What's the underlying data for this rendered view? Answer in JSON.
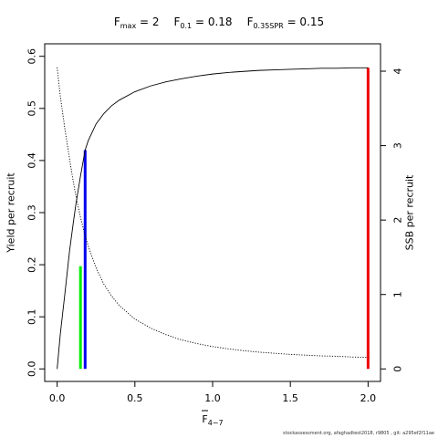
{
  "chart_data": {
    "type": "line",
    "title_parts": [
      {
        "main": "F",
        "sub": "max",
        "value": "2"
      },
      {
        "main": "F",
        "sub": "0.1",
        "value": "0.18"
      },
      {
        "main": "F",
        "sub": "0.35SPR",
        "value": "0.15"
      }
    ],
    "xlabel": {
      "main": "F",
      "sub": "4−7"
    },
    "ylabel_left": "Yield per recruit",
    "ylabel_right": "SSB per recruit",
    "xlim": [
      0,
      2.05
    ],
    "ylim_left": [
      0,
      0.6
    ],
    "ylim_right": [
      0,
      4.2
    ],
    "x_ticks": [
      0,
      0.5,
      1,
      1.5,
      2
    ],
    "x_tick_labels": [
      "0.0",
      "0.5",
      "1.0",
      "1.5",
      "2.0"
    ],
    "y_left_ticks": [
      0,
      0.1,
      0.2,
      0.3,
      0.4,
      0.5,
      0.6
    ],
    "y_left_tick_labels": [
      "0.0",
      "0.1",
      "0.2",
      "0.3",
      "0.4",
      "0.5",
      "0.6"
    ],
    "y_right_ticks": [
      0,
      1,
      2,
      3,
      4
    ],
    "y_right_tick_labels": [
      "0",
      "1",
      "2",
      "3",
      "4"
    ],
    "series": [
      {
        "role": "yield_per_recruit",
        "axis": "left",
        "style": "solid",
        "color": "#000000",
        "x": [
          0,
          0.02,
          0.05,
          0.08,
          0.1,
          0.12,
          0.15,
          0.18,
          0.2,
          0.25,
          0.3,
          0.35,
          0.4,
          0.5,
          0.6,
          0.7,
          0.8,
          0.9,
          1.0,
          1.1,
          1.2,
          1.3,
          1.4,
          1.5,
          1.6,
          1.7,
          1.8,
          1.9,
          2.0
        ],
        "y": [
          0,
          0.066,
          0.145,
          0.227,
          0.272,
          0.315,
          0.37,
          0.42,
          0.438,
          0.47,
          0.49,
          0.505,
          0.516,
          0.532,
          0.543,
          0.551,
          0.557,
          0.562,
          0.566,
          0.569,
          0.571,
          0.573,
          0.574,
          0.575,
          0.576,
          0.577,
          0.577,
          0.578,
          0.578
        ]
      },
      {
        "role": "ssb_per_recruit",
        "axis": "right",
        "style": "dotted",
        "color": "#000000",
        "x": [
          0,
          0.02,
          0.05,
          0.08,
          0.1,
          0.12,
          0.15,
          0.18,
          0.2,
          0.25,
          0.3,
          0.35,
          0.4,
          0.5,
          0.6,
          0.7,
          0.8,
          0.9,
          1.0,
          1.1,
          1.2,
          1.3,
          1.4,
          1.5,
          1.6,
          1.7,
          1.8,
          1.9,
          2.0
        ],
        "y": [
          4.05,
          3.67,
          3.22,
          2.82,
          2.56,
          2.33,
          2.04,
          1.79,
          1.65,
          1.36,
          1.14,
          0.98,
          0.85,
          0.67,
          0.55,
          0.46,
          0.39,
          0.34,
          0.3,
          0.27,
          0.245,
          0.225,
          0.21,
          0.195,
          0.185,
          0.175,
          0.17,
          0.16,
          0.155
        ]
      }
    ],
    "reference_lines": [
      {
        "label": "F_0.35SPR",
        "x": 0.15,
        "y_top": 0.197,
        "color": "#00ee00"
      },
      {
        "label": "F_0.1",
        "x": 0.18,
        "y_top": 0.42,
        "color": "#0000ee"
      },
      {
        "label": "F_max",
        "x": 2.0,
        "y_top": 0.578,
        "color": "#ee0000"
      }
    ],
    "grid": false,
    "legend": "none"
  },
  "footer_text": "stockassessment.org, afaghadtest2018, r9805 , git: a295ef2f11ae"
}
